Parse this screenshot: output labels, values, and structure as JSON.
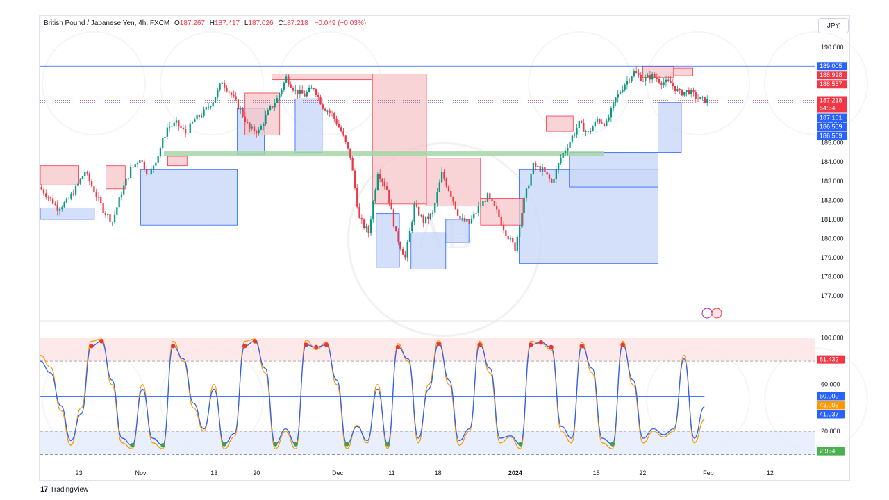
{
  "header": {
    "symbol_line": "British Pound / Japanese Yen, 4h, FXCM",
    "ohlc": [
      {
        "label": "O",
        "value": "187.267"
      },
      {
        "label": "H",
        "value": "187.417"
      },
      {
        "label": "L",
        "value": "187.026"
      },
      {
        "label": "C",
        "value": "187.218"
      }
    ],
    "change": "−0.049 (−0.03%)"
  },
  "currency_button": "JPY",
  "footer": {
    "brand": "TradingView"
  },
  "colors": {
    "bull": "#089981",
    "bear": "#f23645",
    "supply": "#f7c5c9",
    "demand": "#c9d8f8",
    "support_band": "#a5d6a7",
    "stoch_k": "#2962ff",
    "stoch_d": "#ff9800",
    "resistance": "#2962ff"
  },
  "chart_data": [
    {
      "type": "candlestick",
      "symbol": "British Pound / Japanese Yen",
      "timeframe": "4h",
      "ylim": [
        176.5,
        190.5
      ],
      "y_ticks": [
        "177.000",
        "178.000",
        "179.000",
        "180.000",
        "181.000",
        "182.000",
        "183.000",
        "184.000",
        "185.000",
        "186.000",
        "187.000",
        "188.000",
        "189.000",
        "190.000"
      ],
      "x_ticks": [
        "23",
        "Nov",
        "13",
        "20",
        "Dec",
        "11",
        "18",
        "2024",
        "15",
        "22",
        "Feb",
        "12"
      ],
      "price_path": [
        182.7,
        182.2,
        181.6,
        181.9,
        182.6,
        183.5,
        182.5,
        181.5,
        180.9,
        182.4,
        183.6,
        184.2,
        183.3,
        184.4,
        185.8,
        186.0,
        185.5,
        186.2,
        186.6,
        187.2,
        188.2,
        187.5,
        186.7,
        185.7,
        185.6,
        186.6,
        187.3,
        188.4,
        187.7,
        187.5,
        187.9,
        186.9,
        186.5,
        185.6,
        184.3,
        181.0,
        180.3,
        183.5,
        182.6,
        180.2,
        179.0,
        181.7,
        180.9,
        181.3,
        183.4,
        182.3,
        181.0,
        180.8,
        181.6,
        182.2,
        181.4,
        180.3,
        179.5,
        182.0,
        183.8,
        183.6,
        182.9,
        184.2,
        185.1,
        186.0,
        185.5,
        186.2,
        186.0,
        187.3,
        188.1,
        188.7,
        188.3,
        188.5,
        188.2,
        188.1,
        187.6,
        187.7,
        187.3,
        187.2
      ],
      "price_labels": [
        {
          "value": 189.005,
          "text": "189.005",
          "color": "#2962ff"
        },
        {
          "value": 188.928,
          "text": "188.928",
          "color": "#f23645"
        },
        {
          "value": 188.557,
          "text": "188.557",
          "color": "#f23645"
        },
        {
          "value": 187.218,
          "text": "187.218",
          "color": "#f23645"
        },
        {
          "value": 187.101,
          "text": "187.101",
          "color": "#2962ff"
        },
        {
          "value": 186.509,
          "text": "186.509",
          "color": "#2962ff"
        },
        {
          "value": 186.509,
          "text": "186.509",
          "color": "#2962ff"
        }
      ],
      "countdown": "54:54",
      "resistance_line": 189.005,
      "support_band": [
        184.3,
        184.55
      ],
      "supply_zones": [
        {
          "from": 0.0,
          "to": 0.05,
          "low": 182.8,
          "high": 183.8
        },
        {
          "from": 0.085,
          "to": 0.11,
          "low": 182.6,
          "high": 183.8
        },
        {
          "from": 0.165,
          "to": 0.19,
          "low": 183.8,
          "high": 184.3
        },
        {
          "from": 0.265,
          "to": 0.31,
          "low": 185.4,
          "high": 187.6
        },
        {
          "from": 0.3,
          "to": 0.43,
          "low": 188.3,
          "high": 188.6
        },
        {
          "from": 0.43,
          "to": 0.5,
          "low": 181.8,
          "high": 188.6
        },
        {
          "from": 0.5,
          "to": 0.57,
          "low": 181.7,
          "high": 184.2
        },
        {
          "from": 0.57,
          "to": 0.625,
          "low": 180.7,
          "high": 182.1
        },
        {
          "from": 0.655,
          "to": 0.69,
          "low": 185.6,
          "high": 186.4
        },
        {
          "from": 0.78,
          "to": 0.82,
          "low": 188.4,
          "high": 189.0
        },
        {
          "from": 0.82,
          "to": 0.845,
          "low": 188.5,
          "high": 188.9
        }
      ],
      "demand_zones": [
        {
          "from": 0.0,
          "to": 0.07,
          "low": 181.0,
          "high": 181.6
        },
        {
          "from": 0.13,
          "to": 0.255,
          "low": 180.7,
          "high": 183.6
        },
        {
          "from": 0.255,
          "to": 0.29,
          "low": 184.4,
          "high": 186.8
        },
        {
          "from": 0.33,
          "to": 0.365,
          "low": 184.5,
          "high": 187.3
        },
        {
          "from": 0.435,
          "to": 0.465,
          "low": 178.5,
          "high": 181.3
        },
        {
          "from": 0.48,
          "to": 0.525,
          "low": 178.4,
          "high": 180.3
        },
        {
          "from": 0.525,
          "to": 0.555,
          "low": 179.8,
          "high": 181.0
        },
        {
          "from": 0.62,
          "to": 0.8,
          "low": 178.7,
          "high": 183.6
        },
        {
          "from": 0.685,
          "to": 0.8,
          "low": 182.7,
          "high": 184.5
        },
        {
          "from": 0.8,
          "to": 0.83,
          "low": 184.5,
          "high": 187.1
        }
      ]
    },
    {
      "type": "line",
      "ylim": [
        -2,
        105
      ],
      "y_ticks": [
        "20.000",
        "60.000",
        "100.000"
      ],
      "levels": [
        20,
        80,
        100,
        0
      ],
      "midline": 50,
      "series": [
        {
          "values": [
            85,
            75,
            38,
            8,
            40,
            97,
            99,
            60,
            10,
            5,
            60,
            10,
            5,
            97,
            80,
            40,
            20,
            60,
            5,
            15,
            97,
            99,
            70,
            5,
            20,
            5,
            98,
            90,
            96,
            60,
            5,
            25,
            10,
            60,
            5,
            95,
            80,
            10,
            60,
            98,
            60,
            8,
            20,
            97,
            70,
            10,
            15,
            5,
            97,
            95,
            90,
            20,
            10,
            96,
            70,
            10,
            5,
            97,
            60,
            10,
            20,
            15,
            20,
            85,
            10,
            30
          ]
        },
        {
          "values": [
            80,
            70,
            42,
            12,
            35,
            93,
            97,
            64,
            14,
            8,
            56,
            14,
            8,
            93,
            82,
            44,
            22,
            56,
            9,
            18,
            93,
            97,
            74,
            9,
            22,
            9,
            94,
            92,
            94,
            64,
            9,
            24,
            12,
            56,
            9,
            92,
            82,
            14,
            56,
            95,
            64,
            12,
            22,
            94,
            74,
            14,
            16,
            9,
            94,
            96,
            92,
            24,
            14,
            93,
            74,
            14,
            9,
            94,
            64,
            14,
            22,
            17,
            22,
            82,
            14,
            41
          ]
        }
      ],
      "readouts": [
        {
          "value": 81.432,
          "text": "81.432",
          "color": "#f23645"
        },
        {
          "value": 50.0,
          "text": "50.000",
          "color": "#2962ff"
        },
        {
          "value": 43.003,
          "text": "43.003",
          "color": "#ff9800"
        },
        {
          "value": 41.037,
          "text": "41.037",
          "color": "#2962ff"
        },
        {
          "value": 2.954,
          "text": "2.954",
          "color": "#4caf50"
        }
      ]
    }
  ]
}
